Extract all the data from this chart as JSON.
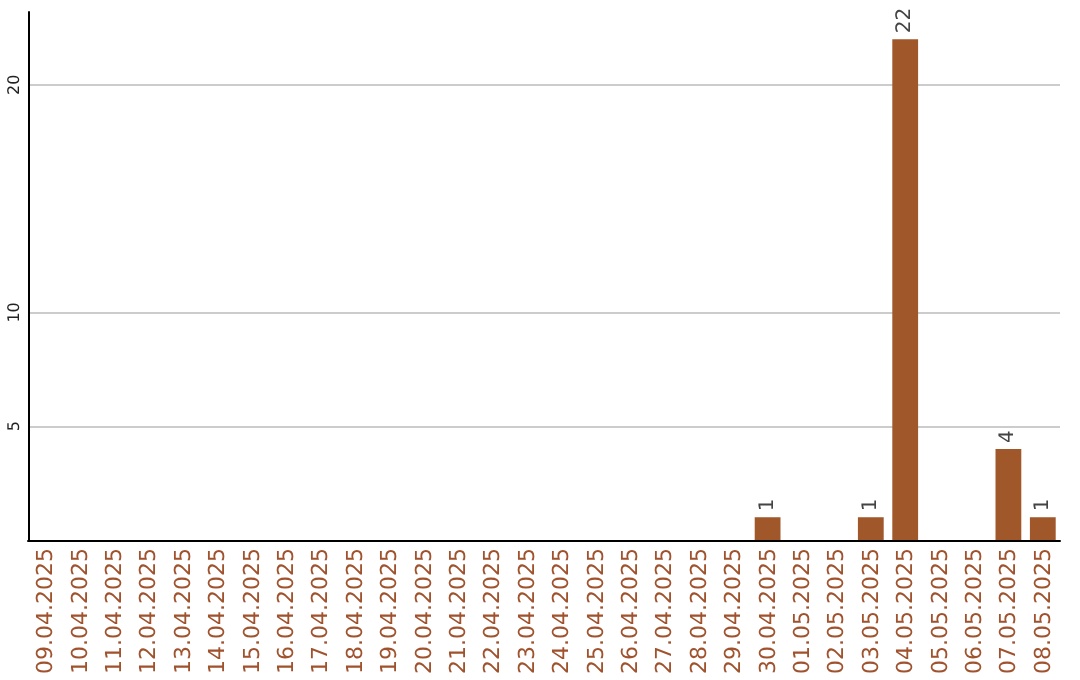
{
  "chart_data": {
    "type": "bar",
    "categories": [
      "09.04.2025",
      "10.04.2025",
      "11.04.2025",
      "12.04.2025",
      "13.04.2025",
      "14.04.2025",
      "15.04.2025",
      "16.04.2025",
      "17.04.2025",
      "18.04.2025",
      "19.04.2025",
      "20.04.2025",
      "21.04.2025",
      "22.04.2025",
      "23.04.2025",
      "24.04.2025",
      "25.04.2025",
      "26.04.2025",
      "27.04.2025",
      "28.04.2025",
      "29.04.2025",
      "30.04.2025",
      "01.05.2025",
      "02.05.2025",
      "03.05.2025",
      "04.05.2025",
      "05.05.2025",
      "06.05.2025",
      "07.05.2025",
      "08.05.2025"
    ],
    "values": [
      0,
      0,
      0,
      0,
      0,
      0,
      0,
      0,
      0,
      0,
      0,
      0,
      0,
      0,
      0,
      0,
      0,
      0,
      0,
      0,
      0,
      1,
      0,
      0,
      1,
      22,
      0,
      0,
      4,
      1
    ],
    "value_labels": [
      null,
      null,
      null,
      null,
      null,
      null,
      null,
      null,
      null,
      null,
      null,
      null,
      null,
      null,
      null,
      null,
      null,
      null,
      null,
      null,
      null,
      "1",
      null,
      null,
      "1",
      "22",
      null,
      null,
      "4",
      "1"
    ],
    "color": "#a0582a",
    "ylim": [
      0,
      23.2
    ],
    "yticks": [
      5,
      10,
      20
    ],
    "grid": "y"
  }
}
